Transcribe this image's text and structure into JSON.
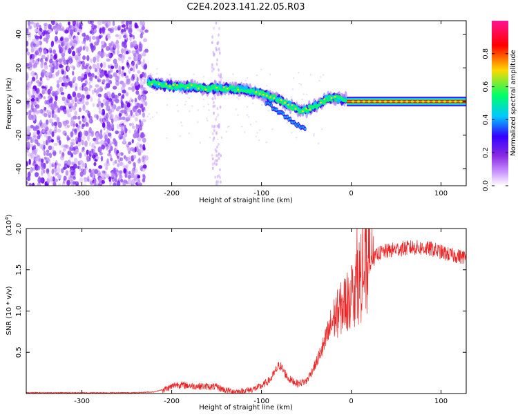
{
  "title": "C2E4.2023.141.22.05.R03",
  "chart_data": [
    {
      "type": "heatmap",
      "xlabel": "Height of straight line (km)",
      "ylabel": "Frequency (Hz)",
      "xlim": [
        -362,
        128
      ],
      "ylim": [
        -50,
        48
      ],
      "xticks": [
        -300,
        -200,
        -100,
        0,
        100
      ],
      "yticks": [
        -40,
        -20,
        0,
        20,
        40
      ],
      "ridge": {
        "x": [
          -225,
          -200,
          -180,
          -160,
          -140,
          -120,
          -100,
          -85,
          -70,
          -55,
          -45,
          -35,
          -25,
          -15,
          -10,
          -5,
          0,
          10,
          40,
          80,
          128
        ],
        "y": [
          11,
          9,
          9,
          8,
          8,
          7,
          5,
          2,
          -2,
          -6,
          -4,
          -1,
          2,
          2,
          1,
          2,
          1,
          0,
          0,
          0,
          0
        ]
      },
      "colorbar": {
        "label": "Normalized spectral amplitude",
        "ticks": [
          0.0,
          0.2,
          0.4,
          0.6,
          0.8
        ],
        "range": [
          0,
          1
        ],
        "colors": [
          "#ffffff",
          "#8a2be2",
          "#3300ff",
          "#00c8ff",
          "#00ff66",
          "#ffd700",
          "#ff0000",
          "#ff1493"
        ]
      }
    },
    {
      "type": "line",
      "xlabel": "Height of straight line (km)",
      "ylabel": "SNR (10 * v/v)",
      "yscale_label": "(x10",
      "yscale_exp": "4",
      "yscale_close": ")",
      "xlim": [
        -362,
        128
      ],
      "ylim": [
        0,
        2.0
      ],
      "xticks": [
        -300,
        -200,
        -100,
        0,
        100
      ],
      "yticks": [
        0.5,
        1.0,
        1.5,
        2.0
      ],
      "series": [
        {
          "color": "#ee2222",
          "x": [
            -362,
            -300,
            -240,
            -220,
            -205,
            -195,
            -175,
            -150,
            -140,
            -125,
            -110,
            -100,
            -90,
            -85,
            -80,
            -75,
            -70,
            -60,
            -50,
            -40,
            -30,
            -20,
            -10,
            0,
            10,
            20,
            30,
            50,
            70,
            90,
            110,
            128
          ],
          "y": [
            0.01,
            0.01,
            0.01,
            0.02,
            0.06,
            0.11,
            0.09,
            0.08,
            0.04,
            0.02,
            0.05,
            0.09,
            0.17,
            0.26,
            0.35,
            0.27,
            0.18,
            0.12,
            0.15,
            0.35,
            0.6,
            0.9,
            1.05,
            1.2,
            1.4,
            1.55,
            1.7,
            1.75,
            1.77,
            1.75,
            1.68,
            1.65
          ]
        }
      ]
    }
  ]
}
